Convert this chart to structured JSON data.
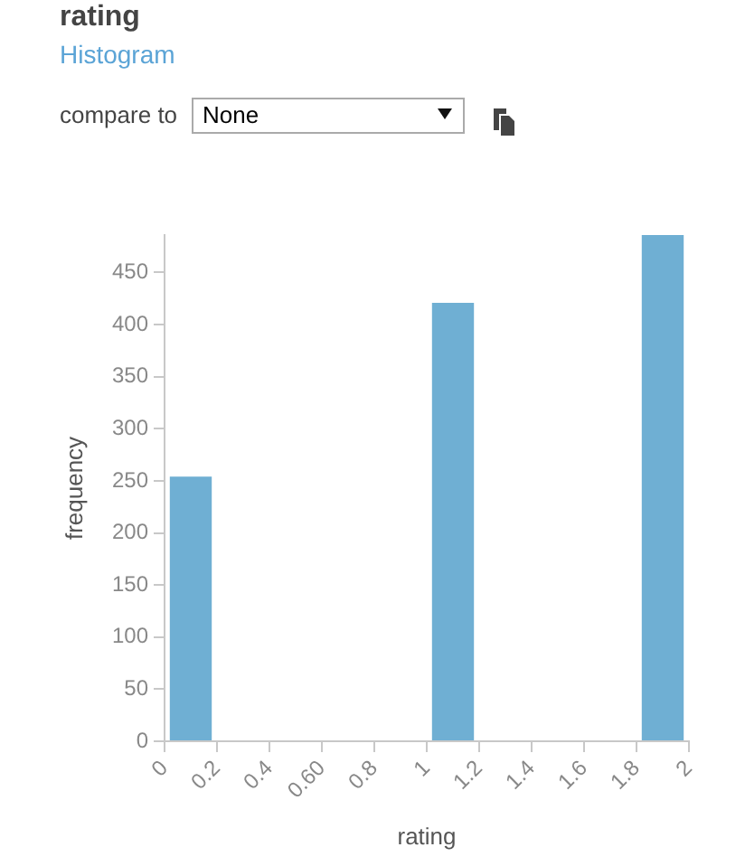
{
  "chart_data": {
    "type": "histogram",
    "title": "rating",
    "subtitle": "Histogram",
    "annotations": [
      "compare to",
      "None"
    ],
    "xlabel": "rating",
    "ylabel": "frequency",
    "bins": [
      0,
      0.2,
      0.4,
      0.6,
      0.8,
      1.0,
      1.2,
      1.4,
      1.6,
      1.8,
      2.0
    ],
    "values": [
      254,
      0,
      0,
      0,
      0,
      421,
      0,
      0,
      0,
      486
    ],
    "color": "#6fafd3",
    "xlim": [
      0,
      2
    ],
    "xticks": [
      0,
      0.2,
      0.4,
      {
        "value": 0.6,
        "label": "0.60"
      },
      0.8,
      1,
      1.2,
      1.4,
      1.6,
      1.8,
      2
    ],
    "ylim": [
      0,
      486
    ],
    "yticks": [
      0,
      50,
      100,
      150,
      200,
      250,
      300,
      350,
      400,
      450
    ]
  }
}
